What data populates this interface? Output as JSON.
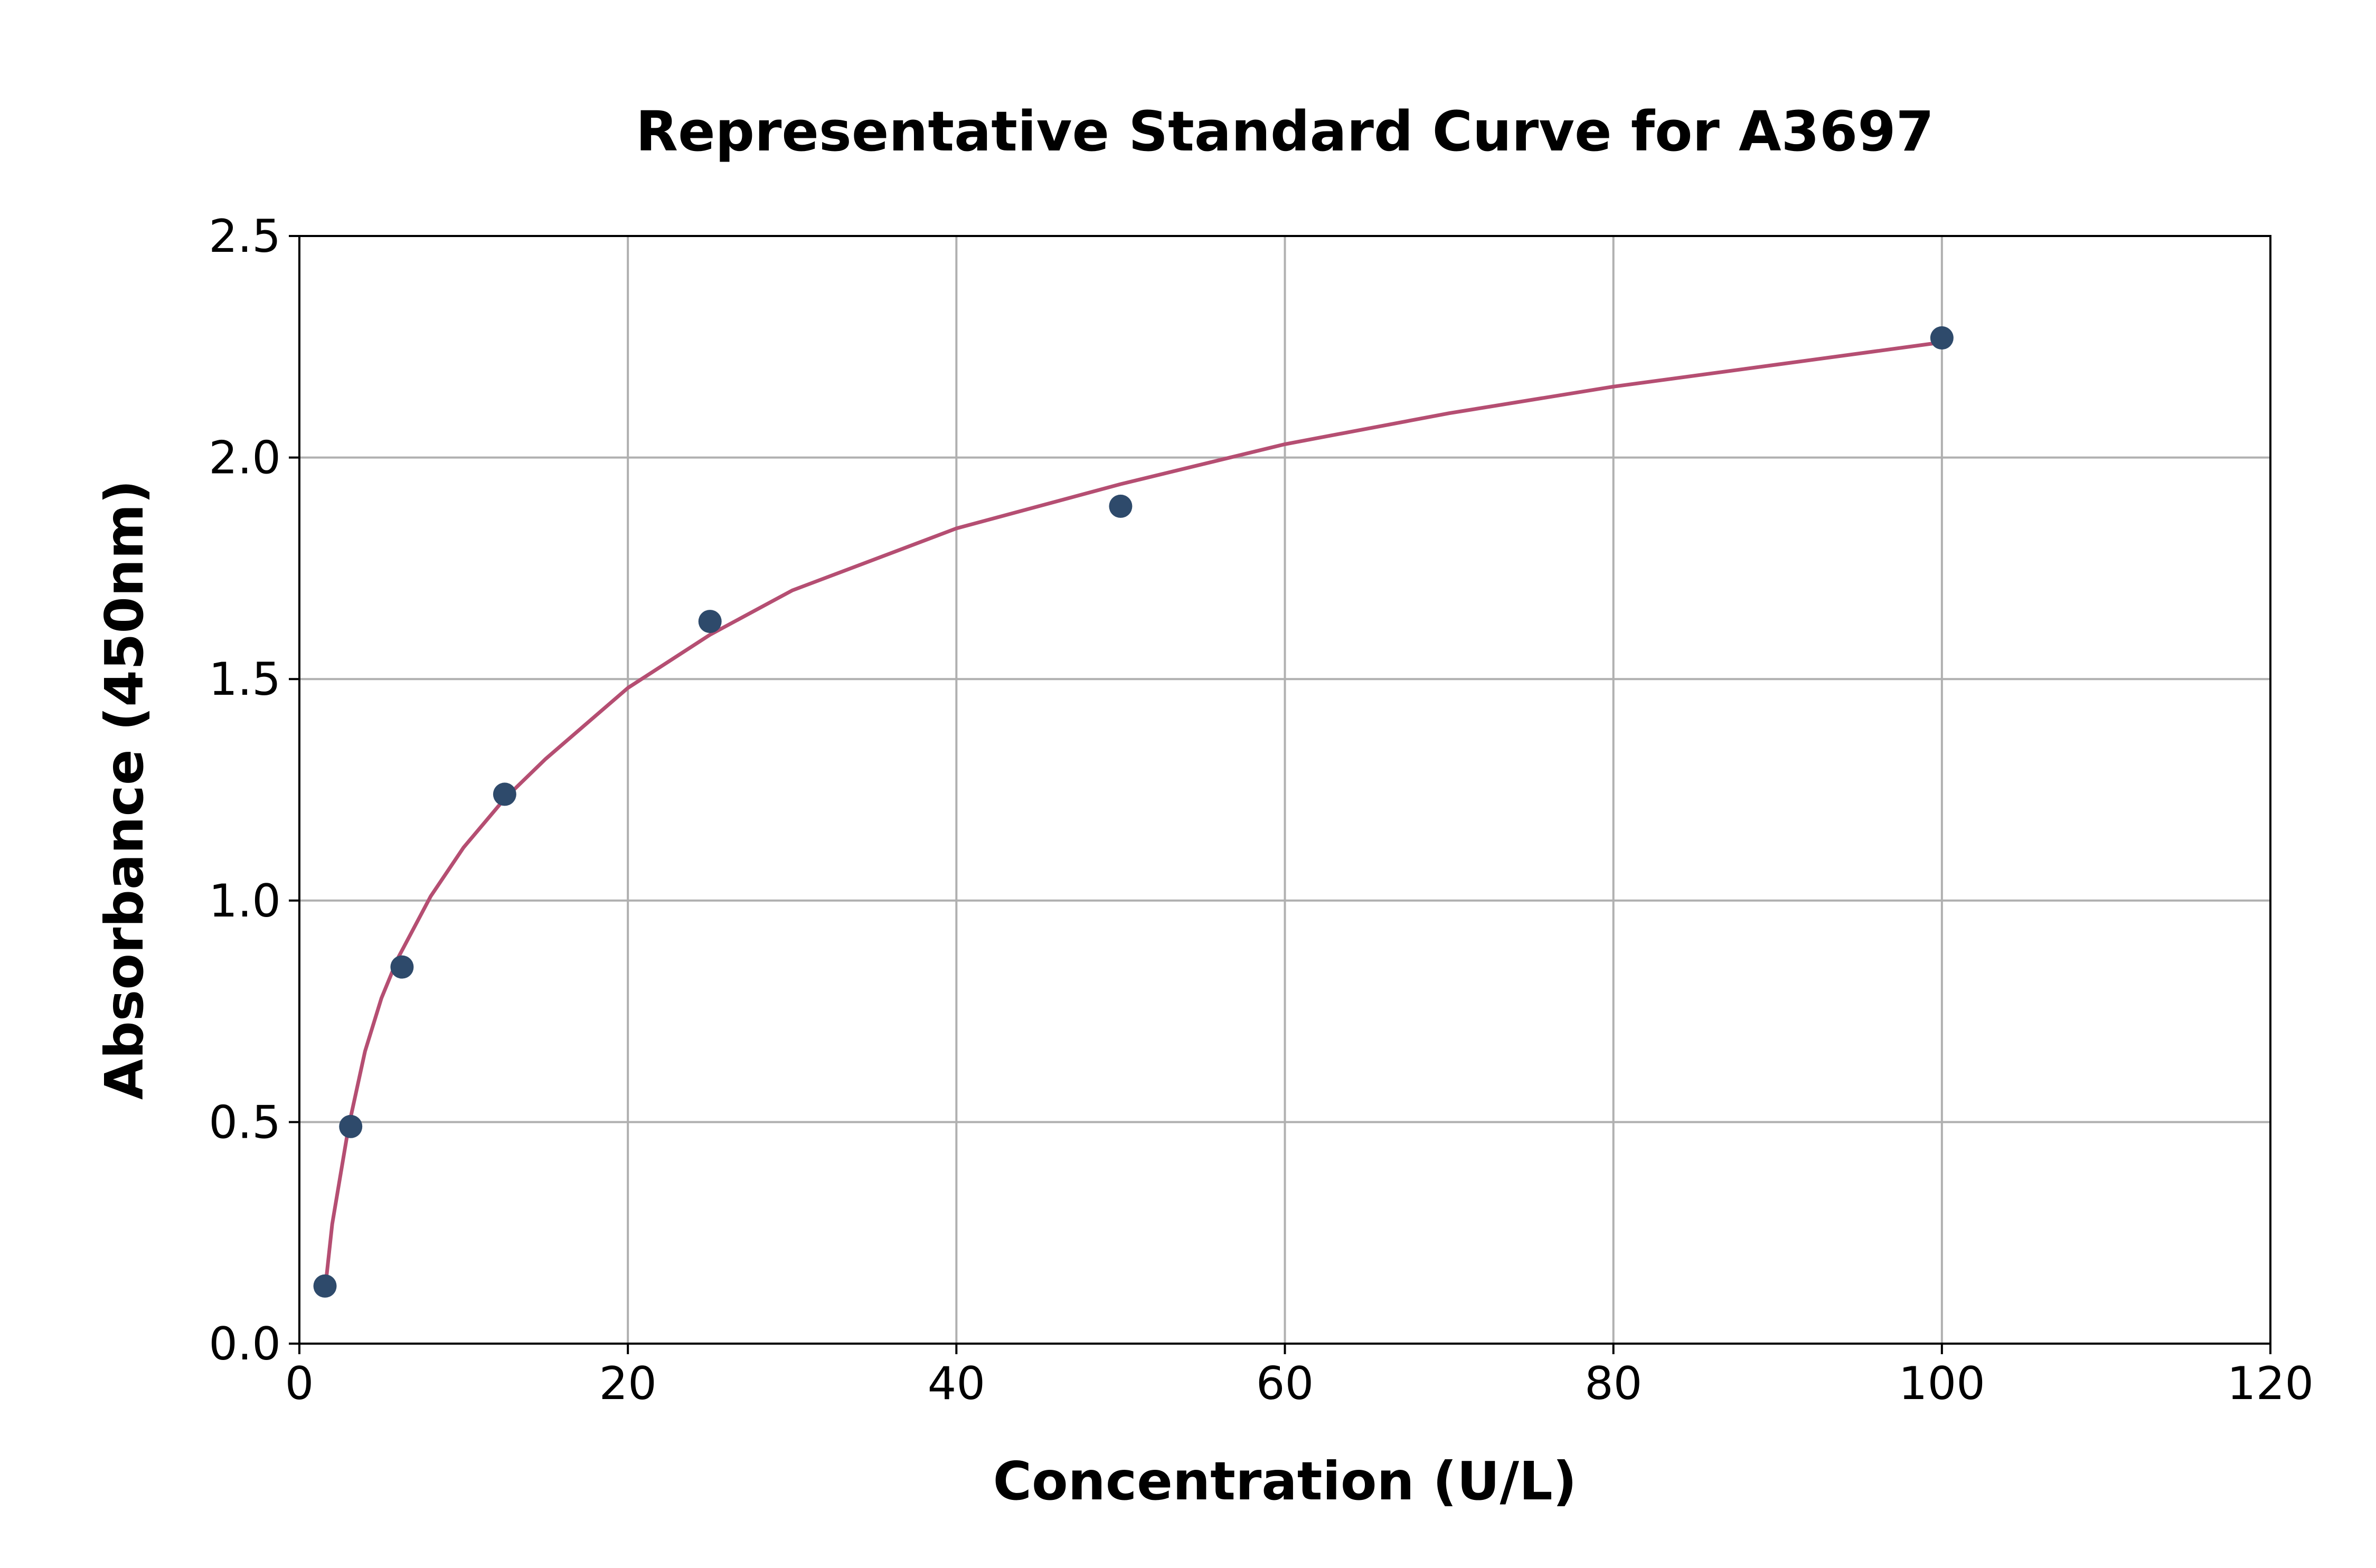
{
  "chart_data": {
    "type": "scatter",
    "title": "Representative Standard Curve for A3697",
    "xlabel": "Concentration (U/L)",
    "ylabel": "Absorbance (450nm)",
    "xlim": [
      0,
      120
    ],
    "ylim": [
      0,
      2.5
    ],
    "x_ticks": [
      "0",
      "20",
      "40",
      "60",
      "80",
      "100",
      "120"
    ],
    "y_ticks": [
      "0.0",
      "0.5",
      "1.0",
      "1.5",
      "2.0",
      "2.5"
    ],
    "grid": true,
    "legend": "none",
    "series": [
      {
        "kind": "points",
        "x": [
          1.56,
          3.125,
          6.25,
          12.5,
          25,
          50,
          100
        ],
        "y": [
          0.13,
          0.49,
          0.85,
          1.24,
          1.63,
          1.89,
          2.27
        ],
        "color": "#2e4a6b"
      },
      {
        "kind": "fitted-curve",
        "x": [
          1.56,
          2,
          3,
          4,
          5,
          6,
          8,
          10,
          12.5,
          15,
          20,
          25,
          30,
          40,
          50,
          60,
          70,
          80,
          90,
          100
        ],
        "y": [
          0.12,
          0.27,
          0.49,
          0.66,
          0.78,
          0.87,
          1.01,
          1.12,
          1.23,
          1.32,
          1.48,
          1.6,
          1.7,
          1.84,
          1.94,
          2.03,
          2.1,
          2.16,
          2.21,
          2.26
        ],
        "color": "#b54e72"
      }
    ]
  }
}
